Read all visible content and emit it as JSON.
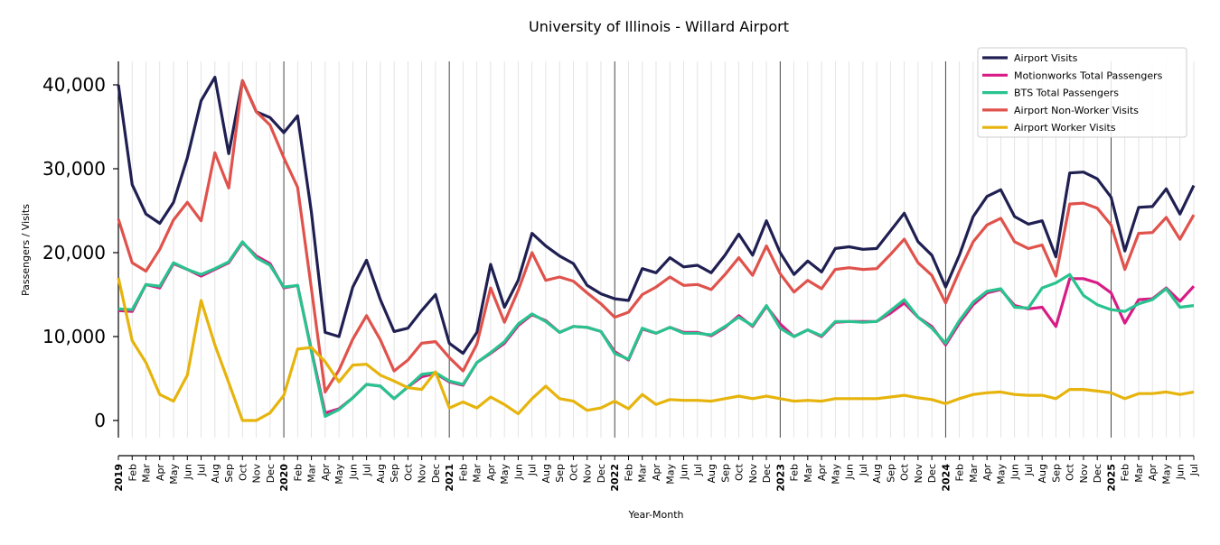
{
  "chart_data": {
    "type": "line",
    "title": "University of Illinois - Willard Airport",
    "xlabel": "Year-Month",
    "ylabel": "Passengers / Visits",
    "ylim": [
      -2000,
      42500
    ],
    "yticks": [
      0,
      10000,
      20000,
      30000,
      40000
    ],
    "ytick_labels": [
      "0",
      "10,000",
      "20,000",
      "30,000",
      "40,000"
    ],
    "grid": "vertical lines at each month; darker lines at each January",
    "legend_placement": "top-right",
    "x_labels": [
      "2019",
      "Feb",
      "Mar",
      "Apr",
      "May",
      "Jun",
      "Jul",
      "Aug",
      "Sep",
      "Oct",
      "Nov",
      "Dec",
      "2020",
      "Feb",
      "Mar",
      "Apr",
      "May",
      "Jun",
      "Jul",
      "Aug",
      "Sep",
      "Oct",
      "Nov",
      "Dec",
      "2021",
      "Feb",
      "Mar",
      "Apr",
      "May",
      "Jun",
      "Jul",
      "Aug",
      "Sep",
      "Oct",
      "Nov",
      "Dec",
      "2022",
      "Feb",
      "Mar",
      "Apr",
      "May",
      "Jun",
      "Jul",
      "Aug",
      "Sep",
      "Oct",
      "Nov",
      "Dec",
      "2023",
      "Feb",
      "Mar",
      "Apr",
      "May",
      "Jun",
      "Jul",
      "Aug",
      "Sep",
      "Oct",
      "Nov",
      "Dec",
      "2024",
      "Feb",
      "Mar",
      "Apr",
      "May",
      "Jun",
      "Jul",
      "Aug",
      "Sep",
      "Oct",
      "Nov",
      "Dec",
      "2025",
      "Feb",
      "Mar",
      "Apr",
      "May",
      "Jun",
      "Jul"
    ],
    "series": [
      {
        "name": "Airport Visits",
        "color": "#1f1f52",
        "values": [
          40000,
          28100,
          24600,
          23500,
          26000,
          31300,
          38100,
          40900,
          31800,
          40500,
          36800,
          36100,
          34300,
          36300,
          24800,
          10500,
          10000,
          15900,
          19100,
          14400,
          10600,
          11000,
          13100,
          15000,
          9200,
          8000,
          10500,
          18600,
          13500,
          16700,
          22300,
          20800,
          19600,
          18700,
          16100,
          15100,
          14500,
          14300,
          18100,
          17600,
          19400,
          18300,
          18500,
          17600,
          19700,
          22200,
          19700,
          23800,
          20000,
          17400,
          19000,
          17700,
          20500,
          20700,
          20400,
          20500,
          22600,
          24700,
          21300,
          19700,
          15900,
          19700,
          24300,
          26700,
          27500,
          24300,
          23400,
          23800,
          19500,
          29500,
          29600,
          28800,
          26600,
          20200,
          25400,
          25500,
          27600,
          24600,
          28000
        ]
      },
      {
        "name": "Motionworks Total Passengers",
        "color": "#d81b85",
        "values": [
          13100,
          13000,
          16200,
          15800,
          18700,
          18000,
          17200,
          18000,
          18800,
          21200,
          19600,
          18700,
          15800,
          16100,
          8400,
          900,
          1400,
          2700,
          4300,
          4100,
          2600,
          4000,
          5200,
          5600,
          4600,
          4200,
          6900,
          8000,
          9200,
          11300,
          12600,
          11900,
          10500,
          11200,
          11100,
          10600,
          8200,
          7200,
          10900,
          10400,
          11100,
          10500,
          10500,
          10100,
          11100,
          12500,
          11200,
          13600,
          11500,
          10000,
          10800,
          10000,
          11700,
          11800,
          11800,
          11800,
          12800,
          14000,
          12300,
          11200,
          9000,
          11600,
          13800,
          15200,
          15600,
          13700,
          13300,
          13500,
          11200,
          16900,
          16900,
          16400,
          15200,
          11600,
          14400,
          14500,
          15800,
          14200,
          16000
        ]
      },
      {
        "name": "BTS Total Passengers",
        "color": "#28c38f",
        "values": [
          13300,
          13200,
          16200,
          16000,
          18800,
          18000,
          17400,
          18100,
          18900,
          21300,
          19400,
          18500,
          15900,
          16100,
          8200,
          500,
          1300,
          2700,
          4300,
          4100,
          2600,
          4000,
          5500,
          5700,
          4700,
          4300,
          6900,
          8100,
          9400,
          11500,
          12700,
          11800,
          10500,
          11200,
          11100,
          10600,
          8000,
          7300,
          11000,
          10400,
          11100,
          10400,
          10400,
          10200,
          11200,
          12300,
          11300,
          13700,
          11000,
          10000,
          10800,
          10100,
          11800,
          11800,
          11700,
          11800,
          13100,
          14400,
          12300,
          11000,
          9200,
          11900,
          14100,
          15400,
          15700,
          13500,
          13400,
          15800,
          16400,
          17400,
          14900,
          13800,
          13200,
          13000,
          13900,
          14400,
          15700,
          13500,
          13700
        ]
      },
      {
        "name": "Airport Non-Worker Visits",
        "color": "#e0524c",
        "values": [
          24000,
          18800,
          17800,
          20400,
          23900,
          26000,
          23800,
          31900,
          27700,
          40500,
          36800,
          35200,
          31300,
          27800,
          15700,
          3400,
          6000,
          9700,
          12500,
          9600,
          5900,
          7200,
          9200,
          9400,
          7500,
          5900,
          9100,
          15800,
          11700,
          15500,
          20000,
          16700,
          17100,
          16600,
          15200,
          13900,
          12300,
          12900,
          15000,
          15900,
          17100,
          16100,
          16200,
          15600,
          17400,
          19400,
          17300,
          20800,
          17500,
          15300,
          16700,
          15700,
          18000,
          18200,
          18000,
          18100,
          19800,
          21600,
          18800,
          17300,
          14000,
          17800,
          21300,
          23300,
          24100,
          21300,
          20500,
          20900,
          17200,
          25800,
          25900,
          25300,
          23300,
          18000,
          22300,
          22400,
          24200,
          21600,
          24500
        ]
      },
      {
        "name": "Airport Worker Visits",
        "color": "#e6b40c",
        "values": [
          17000,
          9500,
          6900,
          3100,
          2300,
          5400,
          14300,
          9000,
          4500,
          0,
          0,
          900,
          3000,
          8500,
          8700,
          7000,
          4600,
          6600,
          6700,
          5400,
          4700,
          3900,
          3700,
          5800,
          1500,
          2200,
          1500,
          2800,
          1900,
          800,
          2600,
          4100,
          2600,
          2300,
          1200,
          1500,
          2300,
          1400,
          3100,
          1900,
          2500,
          2400,
          2400,
          2300,
          2600,
          2900,
          2600,
          2900,
          2600,
          2300,
          2400,
          2300,
          2600,
          2600,
          2600,
          2600,
          2800,
          3000,
          2700,
          2500,
          2000,
          2600,
          3100,
          3300,
          3400,
          3100,
          3000,
          3000,
          2600,
          3700,
          3700,
          3500,
          3300,
          2600,
          3200,
          3200,
          3400,
          3100,
          3400
        ]
      }
    ]
  }
}
